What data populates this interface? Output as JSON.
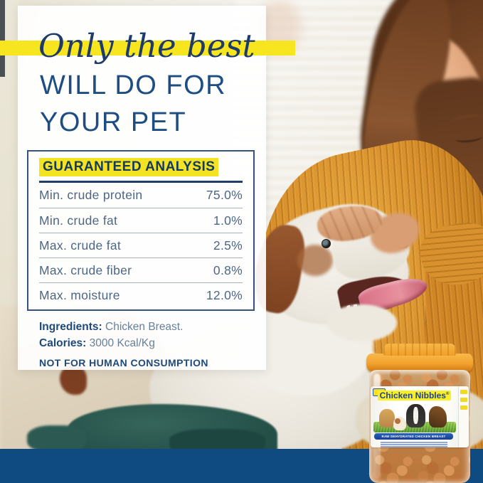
{
  "headline": {
    "script": "Only the best",
    "line1": "WILL DO FOR",
    "line2": "YOUR PET"
  },
  "analysis": {
    "title": "GUARANTEED ANALYSIS",
    "rows": [
      {
        "label": "Min. crude protein",
        "value": "75.0%"
      },
      {
        "label": "Min. crude fat",
        "value": "1.0%"
      },
      {
        "label": "Max. crude fat",
        "value": "2.5%"
      },
      {
        "label": "Max. crude fiber",
        "value": "0.8%"
      },
      {
        "label": "Max. moisture",
        "value": "12.0%"
      }
    ]
  },
  "details": {
    "ingredients_label": "Ingredients:",
    "ingredients_value": " Chicken Breast.",
    "calories_label": "Calories:",
    "calories_value": " 3000 Kcal/Kg",
    "warning": "NOT FOR HUMAN CONSUMPTION"
  },
  "product": {
    "brand": "Chicken Nibbles",
    "registered": "®",
    "banner": "RAW DEHYDRATED CHICKEN BREAST"
  },
  "colors": {
    "accent_yellow": "#F6E51F",
    "headline_navy": "#1D3A6B",
    "caps_blue": "#1D4D83",
    "bottom_bar_blue": "#0F4A80",
    "lid_orange": "#F2A52E",
    "label_banner_blue": "#1B4FA0",
    "grass_green": "#5F9E2F"
  }
}
